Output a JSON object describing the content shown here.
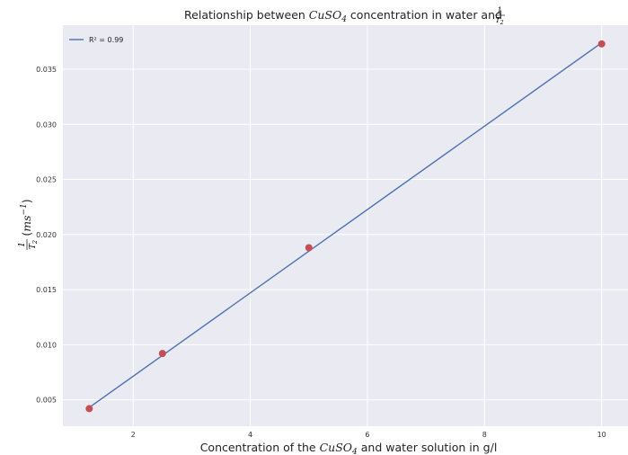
{
  "chart_data": {
    "type": "scatter",
    "title": {
      "prefix": "Relationship between ",
      "formula_base": "CuSO",
      "formula_sub": "4",
      "middle": " concentration in water and ",
      "frac_num": "1",
      "frac_den_base": "T",
      "frac_den_sub": "2"
    },
    "xlabel": {
      "prefix": "Concentration of the ",
      "formula_base": "CuSO",
      "formula_sub": "4",
      "suffix": " and water solution in g/l"
    },
    "ylabel": {
      "frac_num": "1",
      "frac_den_base": "T",
      "frac_den_sub": "2",
      "unit_open": "(",
      "unit_base": "ms",
      "unit_sup": "−1",
      "unit_close": ")"
    },
    "x_ticks": [
      2,
      4,
      6,
      8,
      10
    ],
    "y_ticks": [
      0.005,
      0.01,
      0.015,
      0.02,
      0.025,
      0.03,
      0.035
    ],
    "xlim": [
      0.8,
      10.45
    ],
    "ylim": [
      0.0026,
      0.039
    ],
    "grid": true,
    "legend_position": "top-left",
    "colors": {
      "background": "#eaeaf2",
      "grid": "#ffffff",
      "line": "#4c72b0",
      "marker": "#c44e52"
    },
    "points": {
      "x": [
        1.25,
        2.5,
        5.0,
        10.0
      ],
      "y": [
        0.0042,
        0.0092,
        0.0188,
        0.0373
      ]
    },
    "fit_line": {
      "name": "R² = 0.99",
      "x": [
        1.25,
        10.0
      ],
      "y": [
        0.0043,
        0.0374
      ]
    }
  }
}
